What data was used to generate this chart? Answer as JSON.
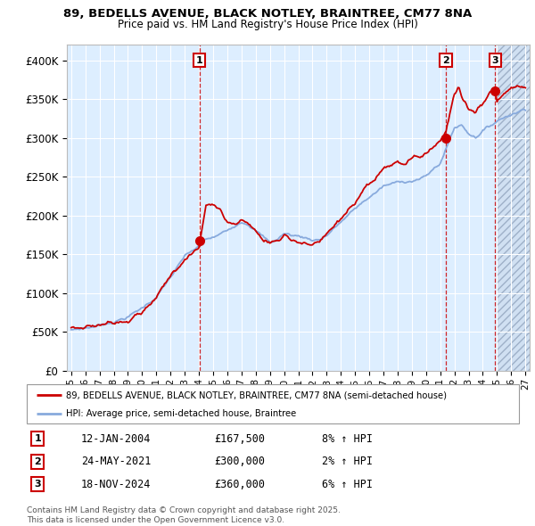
{
  "title_line1": "89, BEDELLS AVENUE, BLACK NOTLEY, BRAINTREE, CM77 8NA",
  "title_line2": "Price paid vs. HM Land Registry's House Price Index (HPI)",
  "background_color": "#ffffff",
  "plot_bg_color": "#ddeeff",
  "grid_color": "#ffffff",
  "sale_color": "#cc0000",
  "hpi_color": "#88aadd",
  "sale_label": "89, BEDELLS AVENUE, BLACK NOTLEY, BRAINTREE, CM77 8NA (semi-detached house)",
  "hpi_label": "HPI: Average price, semi-detached house, Braintree",
  "sale_dates_num": [
    2004.03,
    2021.4,
    2024.88
  ],
  "sale_prices": [
    167500,
    300000,
    360000
  ],
  "sale_labels_text": [
    "1",
    "2",
    "3"
  ],
  "sale_annotations": [
    {
      "label": "1",
      "date": "12-JAN-2004",
      "price": "£167,500",
      "hpi_change": "8% ↑ HPI"
    },
    {
      "label": "2",
      "date": "24-MAY-2021",
      "price": "£300,000",
      "hpi_change": "2% ↑ HPI"
    },
    {
      "label": "3",
      "date": "18-NOV-2024",
      "price": "£360,000",
      "hpi_change": "6% ↑ HPI"
    }
  ],
  "footer": "Contains HM Land Registry data © Crown copyright and database right 2025.\nThis data is licensed under the Open Government Licence v3.0.",
  "ylim": [
    0,
    420000
  ],
  "yticks": [
    0,
    50000,
    100000,
    150000,
    200000,
    250000,
    300000,
    350000,
    400000
  ],
  "ytick_labels": [
    "£0",
    "£50K",
    "£100K",
    "£150K",
    "£200K",
    "£250K",
    "£300K",
    "£350K",
    "£400K"
  ],
  "xlim": [
    1994.7,
    2027.3
  ],
  "xstart_year": 1995,
  "xend_year": 2027,
  "shade_start": 2025.0,
  "shade_end": 2027.3,
  "hpi_anchors": {
    "1995.0": 52000,
    "1996.0": 55000,
    "1997.0": 59000,
    "1998.0": 65000,
    "1999.0": 72000,
    "2000.0": 83000,
    "2001.0": 98000,
    "2002.0": 123000,
    "2003.0": 148000,
    "2004.0": 160000,
    "2004.5": 168000,
    "2005.0": 170000,
    "2006.0": 178000,
    "2007.0": 193000,
    "2007.5": 192000,
    "2008.0": 185000,
    "2009.0": 168000,
    "2009.5": 172000,
    "2010.0": 180000,
    "2010.5": 178000,
    "2011.0": 177000,
    "2011.5": 175000,
    "2012.0": 173000,
    "2012.5": 174000,
    "2013.0": 180000,
    "2014.0": 197000,
    "2015.0": 213000,
    "2016.0": 228000,
    "2017.0": 242000,
    "2018.0": 246000,
    "2019.0": 250000,
    "2020.0": 255000,
    "2021.0": 272000,
    "2021.5": 295000,
    "2022.0": 318000,
    "2022.5": 322000,
    "2023.0": 312000,
    "2023.5": 308000,
    "2024.0": 318000,
    "2024.5": 322000,
    "2025.0": 330000,
    "2026.0": 340000,
    "2027.0": 348000
  },
  "prop_anchors": {
    "1995.0": 54000,
    "1996.0": 57000,
    "1997.0": 61000,
    "1998.0": 67000,
    "1999.0": 75000,
    "2000.0": 86000,
    "2001.0": 102000,
    "2002.0": 128000,
    "2003.0": 154000,
    "2004.0": 167500,
    "2004.5": 223000,
    "2005.0": 222000,
    "2005.5": 218000,
    "2006.0": 200000,
    "2006.5": 198000,
    "2007.0": 205000,
    "2007.5": 198000,
    "2008.0": 190000,
    "2008.5": 178000,
    "2009.0": 174000,
    "2009.5": 178000,
    "2010.0": 185000,
    "2010.5": 181000,
    "2011.0": 180000,
    "2011.5": 177000,
    "2012.0": 174000,
    "2012.5": 176000,
    "2013.0": 183000,
    "2014.0": 202000,
    "2015.0": 218000,
    "2016.0": 235000,
    "2017.0": 252000,
    "2018.0": 258000,
    "2018.5": 255000,
    "2019.0": 260000,
    "2019.5": 262000,
    "2020.0": 268000,
    "2020.5": 278000,
    "2021.0": 285000,
    "2021.4": 300000,
    "2021.5": 310000,
    "2022.0": 348000,
    "2022.3": 360000,
    "2022.5": 345000,
    "2023.0": 330000,
    "2023.5": 328000,
    "2024.0": 340000,
    "2024.5": 355000,
    "2024.88": 360000,
    "2025.0": 345000,
    "2025.5": 355000,
    "2026.0": 360000,
    "2027.0": 365000
  }
}
